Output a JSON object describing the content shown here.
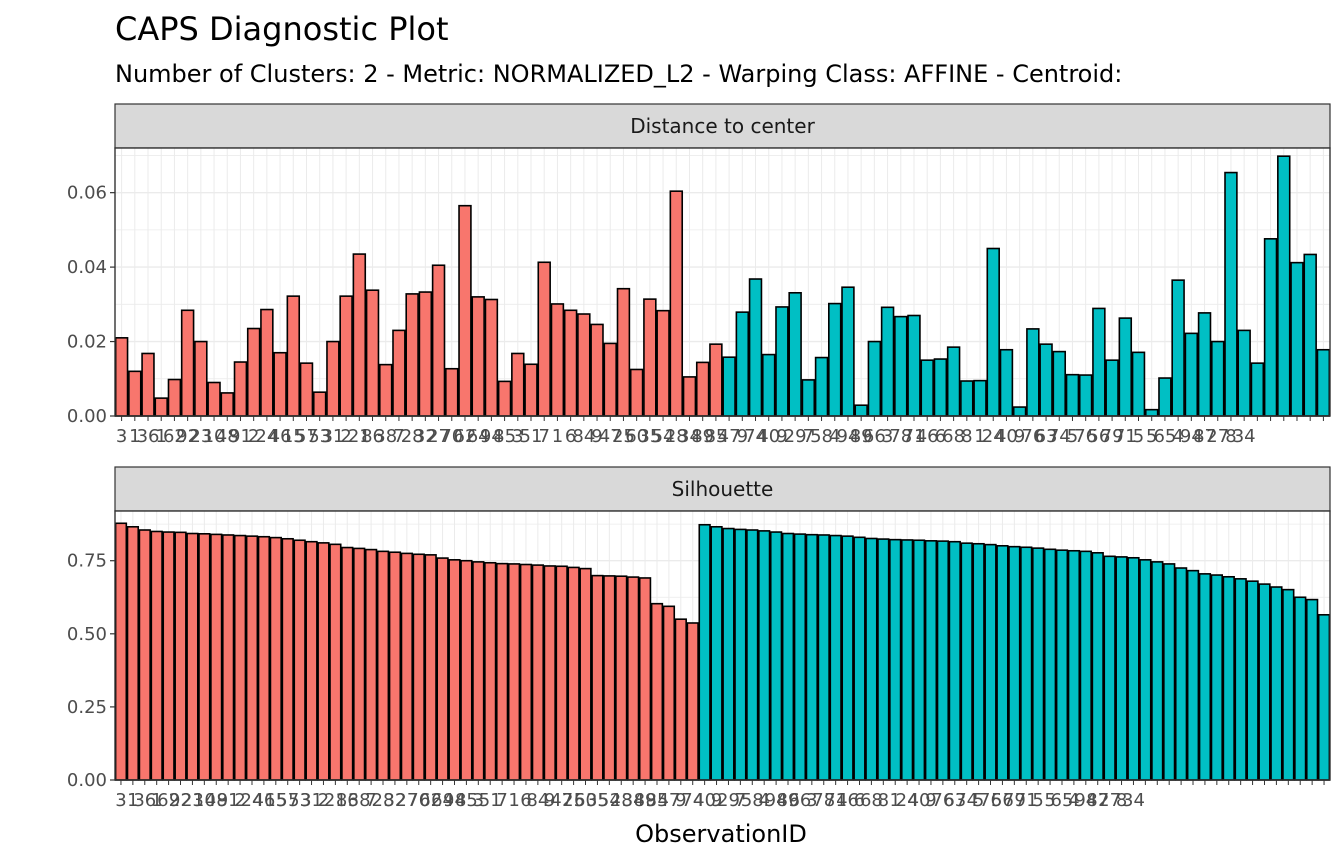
{
  "title": "CAPS Diagnostic Plot",
  "subtitle": "Number of Clusters: 2 - Metric: NORMALIZED_L2 - Warping Class: AFFINE - Centroid:",
  "chart_data": {
    "type": "bar",
    "facets": [
      "Distance to center",
      "Silhouette"
    ],
    "xlabel": "ObservationID",
    "ylabel": "",
    "grid": true,
    "legend": "none",
    "colors": {
      "cluster_1": "#F8766D",
      "cluster_2": "#00BFC4",
      "outline": "#000000",
      "panel_border": "#333333",
      "grid": "#ebebeb",
      "strip_fill": "#d9d9d9"
    },
    "x_tick_labels": [
      "3",
      "1",
      "36",
      "1",
      "62",
      "92",
      "23",
      "10",
      "48",
      "91",
      "2",
      "24",
      "46",
      "15",
      "57",
      "53",
      "31",
      "2",
      "21",
      "86",
      "38",
      "7",
      "28",
      "32",
      "27",
      "70",
      "62",
      "64",
      "94",
      "85",
      "3",
      "51",
      "7",
      "1",
      "6",
      "84",
      "9",
      "47",
      "25",
      "60",
      "35",
      "54",
      "28",
      "34",
      "89",
      "85",
      "47",
      "9",
      "74",
      "40",
      "9",
      "29",
      "7",
      "58",
      "4",
      "94",
      "89",
      "66",
      "3",
      "78",
      "71",
      "46",
      "6",
      "68",
      "8",
      "1",
      "24",
      "40",
      "9",
      "76",
      "63",
      "74",
      "5",
      "76",
      "56",
      "79",
      "71",
      "5",
      "5",
      "65",
      "4",
      "94",
      "87",
      "27",
      "8",
      "34"
    ],
    "panels": [
      {
        "name": "Distance to center",
        "ylim": [
          0,
          0.072
        ],
        "yticks": [
          0,
          0.02,
          0.04,
          0.06
        ],
        "ytick_labels": [
          "0.00",
          "0.02",
          "0.04",
          "0.06"
        ],
        "series": [
          {
            "cluster": 1,
            "values": [
              0.021,
              0.012,
              0.0168,
              0.0048,
              0.0098,
              0.0284,
              0.02,
              0.009,
              0.0062,
              0.0145,
              0.0235,
              0.0286,
              0.017,
              0.0322,
              0.0142,
              0.0064,
              0.02,
              0.0322,
              0.0435,
              0.0338,
              0.0138,
              0.023,
              0.0328,
              0.0333,
              0.0405,
              0.0127,
              0.0565,
              0.032,
              0.0313,
              0.0093,
              0.0168,
              0.0139,
              0.0413,
              0.0301,
              0.0284,
              0.0274,
              0.0246,
              0.0195,
              0.0342,
              0.0125,
              0.0314,
              0.0283,
              0.0604,
              0.0105,
              0.0144,
              0.0193
            ]
          },
          {
            "cluster": 2,
            "values": [
              0.0158,
              0.0279,
              0.0368,
              0.0165,
              0.0293,
              0.0331,
              0.0097,
              0.0157,
              0.0302,
              0.0346,
              0.0029,
              0.02,
              0.0292,
              0.0267,
              0.027,
              0.015,
              0.0153,
              0.0185,
              0.0094,
              0.0095,
              0.045,
              0.0178,
              0.0024,
              0.0234,
              0.0193,
              0.0173,
              0.0111,
              0.011,
              0.0289,
              0.015,
              0.0263,
              0.0171,
              0.0017,
              0.0102,
              0.0365,
              0.0222,
              0.0277,
              0.02,
              0.0654,
              0.023,
              0.0142,
              0.0476,
              0.0698,
              0.0412,
              0.0434,
              0.0178
            ]
          }
        ]
      },
      {
        "name": "Silhouette",
        "ylim": [
          0,
          0.92
        ],
        "yticks": [
          0,
          0.25,
          0.5,
          0.75
        ],
        "ytick_labels": [
          "0.00",
          "0.25",
          "0.50",
          "0.75"
        ],
        "series": [
          {
            "cluster": 1,
            "values": [
              0.878,
              0.866,
              0.855,
              0.85,
              0.848,
              0.847,
              0.843,
              0.842,
              0.84,
              0.838,
              0.836,
              0.834,
              0.832,
              0.829,
              0.825,
              0.82,
              0.815,
              0.811,
              0.806,
              0.795,
              0.792,
              0.788,
              0.782,
              0.779,
              0.775,
              0.772,
              0.77,
              0.759,
              0.753,
              0.75,
              0.746,
              0.743,
              0.74,
              0.739,
              0.737,
              0.735,
              0.732,
              0.731,
              0.727,
              0.723,
              0.699,
              0.698,
              0.697,
              0.694,
              0.691,
              0.603,
              0.594,
              0.55,
              0.537
            ]
          },
          {
            "cluster": 2,
            "values": [
              0.873,
              0.866,
              0.86,
              0.857,
              0.855,
              0.852,
              0.848,
              0.843,
              0.841,
              0.839,
              0.838,
              0.836,
              0.834,
              0.83,
              0.826,
              0.824,
              0.822,
              0.821,
              0.82,
              0.818,
              0.817,
              0.815,
              0.81,
              0.808,
              0.805,
              0.801,
              0.798,
              0.796,
              0.793,
              0.789,
              0.786,
              0.784,
              0.782,
              0.777,
              0.765,
              0.763,
              0.76,
              0.753,
              0.746,
              0.739,
              0.725,
              0.716,
              0.705,
              0.701,
              0.695,
              0.688,
              0.68,
              0.67,
              0.66,
              0.651,
              0.625,
              0.617,
              0.565
            ]
          }
        ]
      }
    ]
  }
}
